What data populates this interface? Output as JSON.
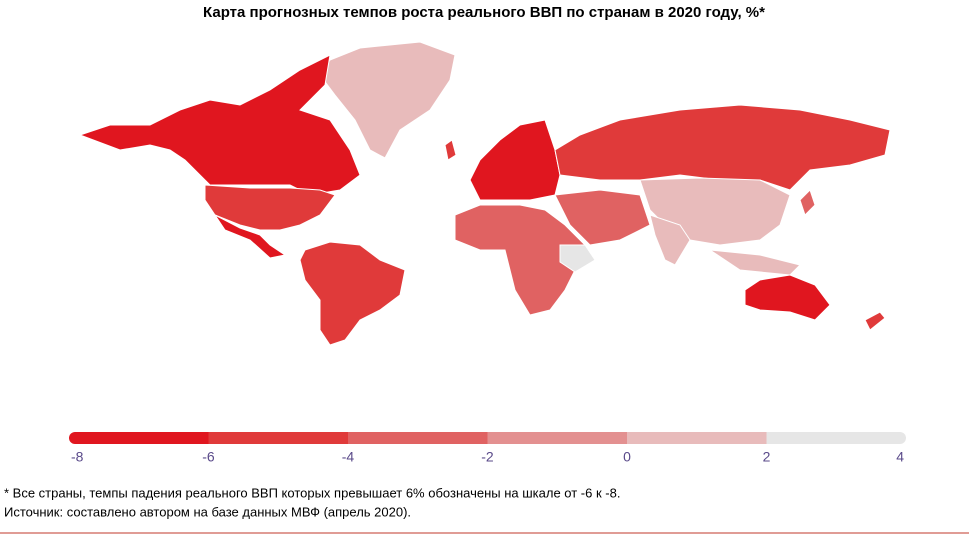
{
  "title": "Карта прогнозных темпов роста реального ВВП по странам в 2020 году, %*",
  "legend": {
    "ticks": [
      -8,
      -6,
      -4,
      -2,
      0,
      2,
      4
    ],
    "colors": [
      "#e0161f",
      "#e03a3a",
      "#e06262",
      "#e39090",
      "#e8bbbb",
      "#e6e6e6"
    ]
  },
  "notes": [
    "* Все страны, темпы падения реального ВВП которых превышает 6% обозначены на шкале от -6 к -8.",
    "Источник: составлено автором на базе данных МВФ (апрель 2020)."
  ]
}
